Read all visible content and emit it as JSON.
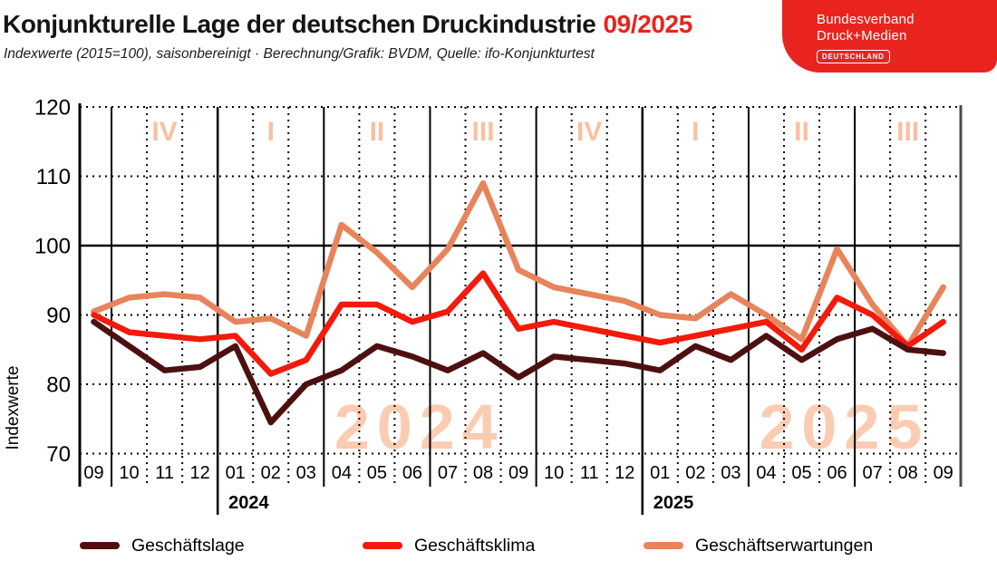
{
  "header": {
    "title": "Konjunkturelle Lage der deutschen Druckindustrie",
    "report_date": "09/2025",
    "subtitle": "Indexwerte (2015=100), saisonbereinigt · Berechnung/Grafik: BVDM, Quelle: ifo-Konjunkturtest"
  },
  "logo": {
    "line1": "Bundesverband",
    "line2": "Druck+Medien",
    "badge": "DEUTSCHLAND"
  },
  "colors": {
    "accent_red": "#e9241f",
    "watermark": "#fbccb2",
    "quarter_label": "#f9c0a2",
    "reference_grid": "#000000",
    "right_frame": "#4a4a4a"
  },
  "chart_data": {
    "type": "line",
    "title": "Konjunkturelle Lage der deutschen Druckindustrie 09/2025",
    "xlabel": "",
    "ylabel": "Indexwerte",
    "ylim": [
      70,
      120
    ],
    "yticks": [
      70,
      80,
      90,
      100,
      110,
      120
    ],
    "reference_line": 100,
    "grid": "dotted",
    "legend_position": "bottom",
    "x_labels": [
      "09",
      "10",
      "11",
      "12",
      "01",
      "02",
      "03",
      "04",
      "05",
      "06",
      "07",
      "08",
      "09",
      "10",
      "11",
      "12",
      "01",
      "02",
      "03",
      "04",
      "05",
      "06",
      "07",
      "08",
      "09"
    ],
    "quarter_labels": [
      {
        "label": "IV",
        "center": 2
      },
      {
        "label": "I",
        "center": 5
      },
      {
        "label": "II",
        "center": 8
      },
      {
        "label": "III",
        "center": 11
      },
      {
        "label": "IV",
        "center": 14
      },
      {
        "label": "I",
        "center": 17
      },
      {
        "label": "II",
        "center": 20
      },
      {
        "label": "III",
        "center": 23
      }
    ],
    "year_labels": [
      {
        "label": "2024",
        "boundary": 3
      },
      {
        "label": "2025",
        "boundary": 15
      }
    ],
    "watermarks": [
      {
        "label": "2024",
        "center": 9.2
      },
      {
        "label": "2025",
        "center": 21.2
      }
    ],
    "series": [
      {
        "name": "Geschäftslage",
        "color": "#4d1010",
        "values": [
          89,
          85.5,
          82,
          82.5,
          85.5,
          74.5,
          80,
          82,
          85.5,
          84,
          82,
          84.5,
          81,
          84,
          83.5,
          83,
          82,
          85.5,
          83.5,
          87,
          83.5,
          86.5,
          88,
          85,
          84.5
        ]
      },
      {
        "name": "Geschäftsklima",
        "color": "#f31a0c",
        "values": [
          90,
          87.5,
          87,
          86.5,
          87,
          81.5,
          83.5,
          91.5,
          91.5,
          89,
          90.5,
          96,
          88,
          89,
          88,
          87,
          86,
          87,
          88,
          89,
          85,
          92.5,
          90,
          85.5,
          89
        ]
      },
      {
        "name": "Geschäftserwartungen",
        "color": "#e8845c",
        "values": [
          90.5,
          92.5,
          93,
          92.5,
          89,
          89.5,
          87,
          103,
          99,
          94,
          99.5,
          109,
          96.5,
          94,
          93,
          92,
          90,
          89.5,
          93,
          90,
          86.5,
          99.5,
          91.5,
          85.5,
          94
        ]
      }
    ]
  }
}
